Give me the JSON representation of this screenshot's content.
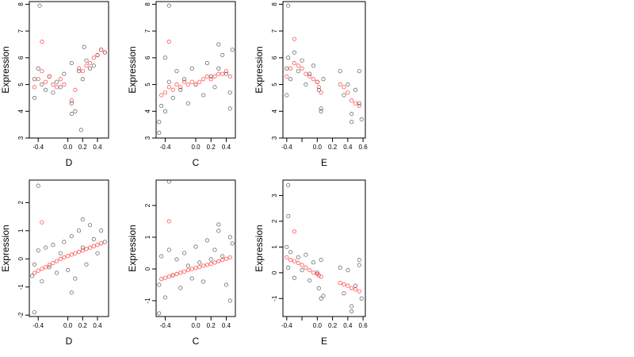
{
  "chart_data": [
    {
      "type": "scatter",
      "xlabel": "D",
      "ylabel": "Expression",
      "xlim": [
        -0.52,
        0.55
      ],
      "ylim": [
        3,
        8.1
      ],
      "xticks": [
        -0.4,
        0.0,
        0.2,
        0.4
      ],
      "xtick_labels": [
        "-0.4",
        "0.0",
        "0.2",
        "0.4"
      ],
      "yticks": [
        3,
        4,
        5,
        6,
        7,
        8
      ],
      "ytick_labels": [
        "3",
        "4",
        "5",
        "6",
        "7",
        "8"
      ],
      "colors": {
        "observed": "#000000",
        "fitted": "#ff0000"
      },
      "series": [
        {
          "role": "observed",
          "x": [
            -0.45,
            -0.45,
            -0.4,
            -0.35,
            -0.3,
            -0.25,
            -0.2,
            -0.15,
            -0.1,
            -0.05,
            0.05,
            0.05,
            0.1,
            0.15,
            0.2,
            0.25,
            0.3,
            0.35,
            0.4,
            0.45,
            0.5,
            -0.38,
            0.18,
            0.05,
            0.22
          ],
          "y": [
            5.2,
            4.5,
            5.6,
            5.0,
            4.8,
            5.3,
            4.7,
            5.1,
            4.9,
            5.4,
            4.3,
            5.8,
            4.0,
            5.5,
            5.2,
            5.9,
            5.6,
            5.7,
            6.1,
            6.3,
            6.2,
            7.95,
            3.3,
            3.9,
            6.4
          ]
        },
        {
          "role": "fitted",
          "x": [
            -0.45,
            -0.4,
            -0.35,
            -0.3,
            -0.25,
            -0.2,
            -0.15,
            -0.1,
            -0.05,
            0.05,
            0.1,
            0.15,
            0.2,
            0.25,
            0.3,
            0.35,
            0.4,
            0.45,
            0.5,
            -0.35
          ],
          "y": [
            4.9,
            5.2,
            5.5,
            5.1,
            5.3,
            5.0,
            4.9,
            5.2,
            5.0,
            4.4,
            4.8,
            5.6,
            5.5,
            5.7,
            5.8,
            6.0,
            6.1,
            6.3,
            6.2,
            6.6
          ]
        }
      ]
    },
    {
      "type": "scatter",
      "xlabel": "C",
      "ylabel": "Expression",
      "xlim": [
        -0.52,
        0.52
      ],
      "ylim": [
        3,
        8.1
      ],
      "xticks": [
        -0.4,
        0.0,
        0.2,
        0.4
      ],
      "xtick_labels": [
        "-0.4",
        "0.0",
        "0.2",
        "0.4"
      ],
      "yticks": [
        3,
        4,
        5,
        6,
        7,
        8
      ],
      "ytick_labels": [
        "3",
        "4",
        "5",
        "6",
        "7",
        "8"
      ],
      "colors": {
        "observed": "#000000",
        "fitted": "#ff0000"
      },
      "series": [
        {
          "role": "observed",
          "x": [
            -0.48,
            -0.45,
            -0.4,
            -0.35,
            -0.3,
            -0.25,
            -0.2,
            -0.15,
            -0.1,
            -0.05,
            0.0,
            0.1,
            0.15,
            0.2,
            0.25,
            0.3,
            0.35,
            0.4,
            0.45,
            0.48,
            -0.48,
            -0.35,
            0.3,
            0.45,
            -0.4
          ],
          "y": [
            3.6,
            4.2,
            6.0,
            5.1,
            4.5,
            5.5,
            4.8,
            5.2,
            4.3,
            5.6,
            5.0,
            4.6,
            5.8,
            5.3,
            4.9,
            5.6,
            6.1,
            5.4,
            4.7,
            6.3,
            3.2,
            7.95,
            6.5,
            4.1,
            4.0
          ]
        },
        {
          "role": "fitted",
          "x": [
            -0.45,
            -0.4,
            -0.35,
            -0.3,
            -0.25,
            -0.2,
            -0.15,
            -0.1,
            -0.05,
            0.0,
            0.05,
            0.1,
            0.15,
            0.2,
            0.25,
            0.3,
            0.35,
            0.4,
            0.45,
            -0.35
          ],
          "y": [
            4.6,
            4.7,
            4.9,
            4.8,
            5.0,
            4.9,
            5.1,
            5.0,
            5.1,
            5.0,
            5.1,
            5.2,
            5.3,
            5.2,
            5.3,
            5.4,
            5.4,
            5.5,
            5.3,
            6.6
          ]
        }
      ]
    },
    {
      "type": "scatter",
      "xlabel": "E",
      "ylabel": "Expression",
      "xlim": [
        -0.45,
        0.63
      ],
      "ylim": [
        3,
        8.1
      ],
      "xticks": [
        -0.4,
        -0.2,
        0.0,
        0.2,
        0.4,
        0.6
      ],
      "xtick_labels": [
        "-0.4",
        "",
        "0.0",
        "0.2",
        "0.4",
        "0.6"
      ],
      "yticks": [
        3,
        4,
        5,
        6,
        7,
        8
      ],
      "ytick_labels": [
        "3",
        "4",
        "5",
        "6",
        "7",
        "8"
      ],
      "colors": {
        "observed": "#000000",
        "fitted": "#ff0000"
      },
      "series": [
        {
          "role": "observed",
          "x": [
            -0.4,
            -0.38,
            -0.35,
            -0.3,
            -0.25,
            -0.2,
            -0.15,
            -0.1,
            -0.05,
            0.0,
            0.02,
            0.05,
            0.08,
            0.3,
            0.35,
            0.4,
            0.45,
            0.5,
            0.55,
            0.58,
            -0.38,
            0.05,
            0.45,
            0.55,
            -0.4
          ],
          "y": [
            5.6,
            6.0,
            5.2,
            6.2,
            5.5,
            5.9,
            5.0,
            5.4,
            5.7,
            5.1,
            4.8,
            4.1,
            5.2,
            5.5,
            4.6,
            5.0,
            3.9,
            4.8,
            4.3,
            3.7,
            7.95,
            4.0,
            3.6,
            5.5,
            4.6
          ]
        },
        {
          "role": "fitted",
          "x": [
            -0.4,
            -0.35,
            -0.3,
            -0.25,
            -0.2,
            -0.15,
            -0.1,
            -0.05,
            0.0,
            0.02,
            0.05,
            0.3,
            0.35,
            0.4,
            0.45,
            0.5,
            0.55,
            -0.3
          ],
          "y": [
            5.3,
            5.6,
            5.8,
            5.7,
            5.6,
            5.4,
            5.3,
            5.2,
            5.1,
            4.9,
            4.7,
            5.0,
            4.9,
            4.7,
            4.4,
            4.3,
            4.2,
            6.7
          ]
        }
      ]
    },
    {
      "type": "scatter",
      "xlabel": "D",
      "ylabel": "Expression",
      "xlim": [
        -0.52,
        0.55
      ],
      "ylim": [
        -2.05,
        2.8
      ],
      "xticks": [
        -0.4,
        0.0,
        0.2,
        0.4
      ],
      "xtick_labels": [
        "-0.4",
        "0.0",
        "0.2",
        "0.4"
      ],
      "yticks": [
        -2,
        -1,
        0,
        1,
        2
      ],
      "ytick_labels": [
        "-2",
        "-1",
        "0",
        "1",
        "2"
      ],
      "colors": {
        "observed": "#000000",
        "fitted": "#ff0000"
      },
      "series": [
        {
          "role": "observed",
          "x": [
            -0.48,
            -0.45,
            -0.4,
            -0.35,
            -0.3,
            -0.25,
            -0.2,
            -0.15,
            -0.1,
            -0.05,
            0.0,
            0.05,
            0.1,
            0.15,
            0.2,
            0.25,
            0.3,
            0.35,
            0.4,
            0.45,
            0.5,
            -0.4,
            -0.45,
            0.05,
            0.2
          ],
          "y": [
            -0.6,
            -0.2,
            0.3,
            -0.8,
            0.4,
            -0.3,
            0.5,
            -0.5,
            0.2,
            0.6,
            -0.4,
            0.8,
            -0.7,
            1.0,
            0.4,
            -0.2,
            1.2,
            0.7,
            0.2,
            1.0,
            0.6,
            2.6,
            -1.9,
            -1.2,
            1.4
          ]
        },
        {
          "role": "fitted",
          "x": [
            -0.45,
            -0.4,
            -0.35,
            -0.3,
            -0.25,
            -0.2,
            -0.15,
            -0.1,
            -0.05,
            0.0,
            0.05,
            0.1,
            0.15,
            0.2,
            0.25,
            0.3,
            0.35,
            0.4,
            0.45,
            -0.35
          ],
          "y": [
            -0.5,
            -0.42,
            -0.35,
            -0.3,
            -0.22,
            -0.15,
            -0.08,
            0.0,
            0.05,
            0.1,
            0.15,
            0.2,
            0.25,
            0.3,
            0.35,
            0.4,
            0.45,
            0.5,
            0.55,
            1.3
          ]
        }
      ]
    },
    {
      "type": "scatter",
      "xlabel": "C",
      "ylabel": "Expression",
      "xlim": [
        -0.52,
        0.52
      ],
      "ylim": [
        -1.5,
        2.8
      ],
      "xticks": [
        -0.4,
        0.0,
        0.2,
        0.4
      ],
      "xtick_labels": [
        "-0.4",
        "0.0",
        "0.2",
        "0.4"
      ],
      "yticks": [
        -1,
        0,
        1,
        2
      ],
      "ytick_labels": [
        "-1",
        "0",
        "1",
        "2"
      ],
      "colors": {
        "observed": "#000000",
        "fitted": "#ff0000"
      },
      "series": [
        {
          "role": "observed",
          "x": [
            -0.48,
            -0.45,
            -0.4,
            -0.35,
            -0.3,
            -0.25,
            -0.2,
            -0.15,
            -0.1,
            -0.05,
            0.0,
            0.05,
            0.1,
            0.15,
            0.2,
            0.25,
            0.3,
            0.35,
            0.4,
            0.45,
            0.48,
            -0.35,
            -0.48,
            0.3,
            0.45
          ],
          "y": [
            -0.5,
            0.4,
            -0.9,
            0.6,
            -0.2,
            0.3,
            -0.6,
            0.5,
            0.1,
            -0.3,
            0.7,
            0.2,
            -0.4,
            0.9,
            0.3,
            0.6,
            1.2,
            0.4,
            -0.5,
            1.0,
            0.8,
            2.75,
            -1.4,
            1.4,
            -1.0
          ]
        },
        {
          "role": "fitted",
          "x": [
            -0.45,
            -0.4,
            -0.35,
            -0.3,
            -0.25,
            -0.2,
            -0.15,
            -0.1,
            -0.05,
            0.0,
            0.05,
            0.1,
            0.15,
            0.2,
            0.25,
            0.3,
            0.35,
            0.4,
            0.45,
            -0.35
          ],
          "y": [
            -0.32,
            -0.28,
            -0.24,
            -0.2,
            -0.16,
            -0.12,
            -0.08,
            -0.04,
            0.0,
            0.03,
            0.06,
            0.1,
            0.13,
            0.16,
            0.2,
            0.24,
            0.28,
            0.32,
            0.36,
            1.5
          ]
        }
      ]
    },
    {
      "type": "scatter",
      "xlabel": "E",
      "ylabel": "Expression",
      "xlim": [
        -0.45,
        0.63
      ],
      "ylim": [
        -1.7,
        3.6
      ],
      "xticks": [
        -0.4,
        -0.2,
        0.0,
        0.2,
        0.4,
        0.6
      ],
      "xtick_labels": [
        "-0.4",
        "",
        "0.0",
        "0.2",
        "0.4",
        "0.6"
      ],
      "yticks": [
        -1,
        0,
        1,
        2,
        3
      ],
      "ytick_labels": [
        "-1",
        "0",
        "1",
        "2",
        "3"
      ],
      "colors": {
        "observed": "#000000",
        "fitted": "#ff0000"
      },
      "series": [
        {
          "role": "observed",
          "x": [
            -0.4,
            -0.38,
            -0.35,
            -0.3,
            -0.25,
            -0.2,
            -0.15,
            -0.1,
            -0.05,
            0.0,
            0.02,
            0.05,
            0.08,
            0.3,
            0.35,
            0.4,
            0.45,
            0.5,
            0.55,
            0.58,
            -0.38,
            -0.38,
            0.05,
            0.45,
            0.55
          ],
          "y": [
            1.0,
            0.2,
            0.8,
            -0.2,
            0.6,
            0.1,
            0.7,
            -0.3,
            0.4,
            0.0,
            -0.6,
            0.5,
            -0.9,
            0.2,
            -0.8,
            0.1,
            -1.3,
            -0.5,
            0.3,
            -1.0,
            3.4,
            2.2,
            -1.0,
            -1.5,
            0.5
          ]
        },
        {
          "role": "fitted",
          "x": [
            -0.4,
            -0.35,
            -0.3,
            -0.25,
            -0.2,
            -0.15,
            -0.1,
            -0.05,
            0.0,
            0.02,
            0.05,
            0.3,
            0.35,
            0.4,
            0.45,
            0.5,
            0.55,
            -0.3
          ],
          "y": [
            0.6,
            0.5,
            0.45,
            0.38,
            0.3,
            0.2,
            0.1,
            0.0,
            -0.05,
            -0.1,
            -0.15,
            -0.4,
            -0.45,
            -0.5,
            -0.6,
            -0.65,
            -0.72,
            1.6
          ]
        }
      ]
    }
  ]
}
